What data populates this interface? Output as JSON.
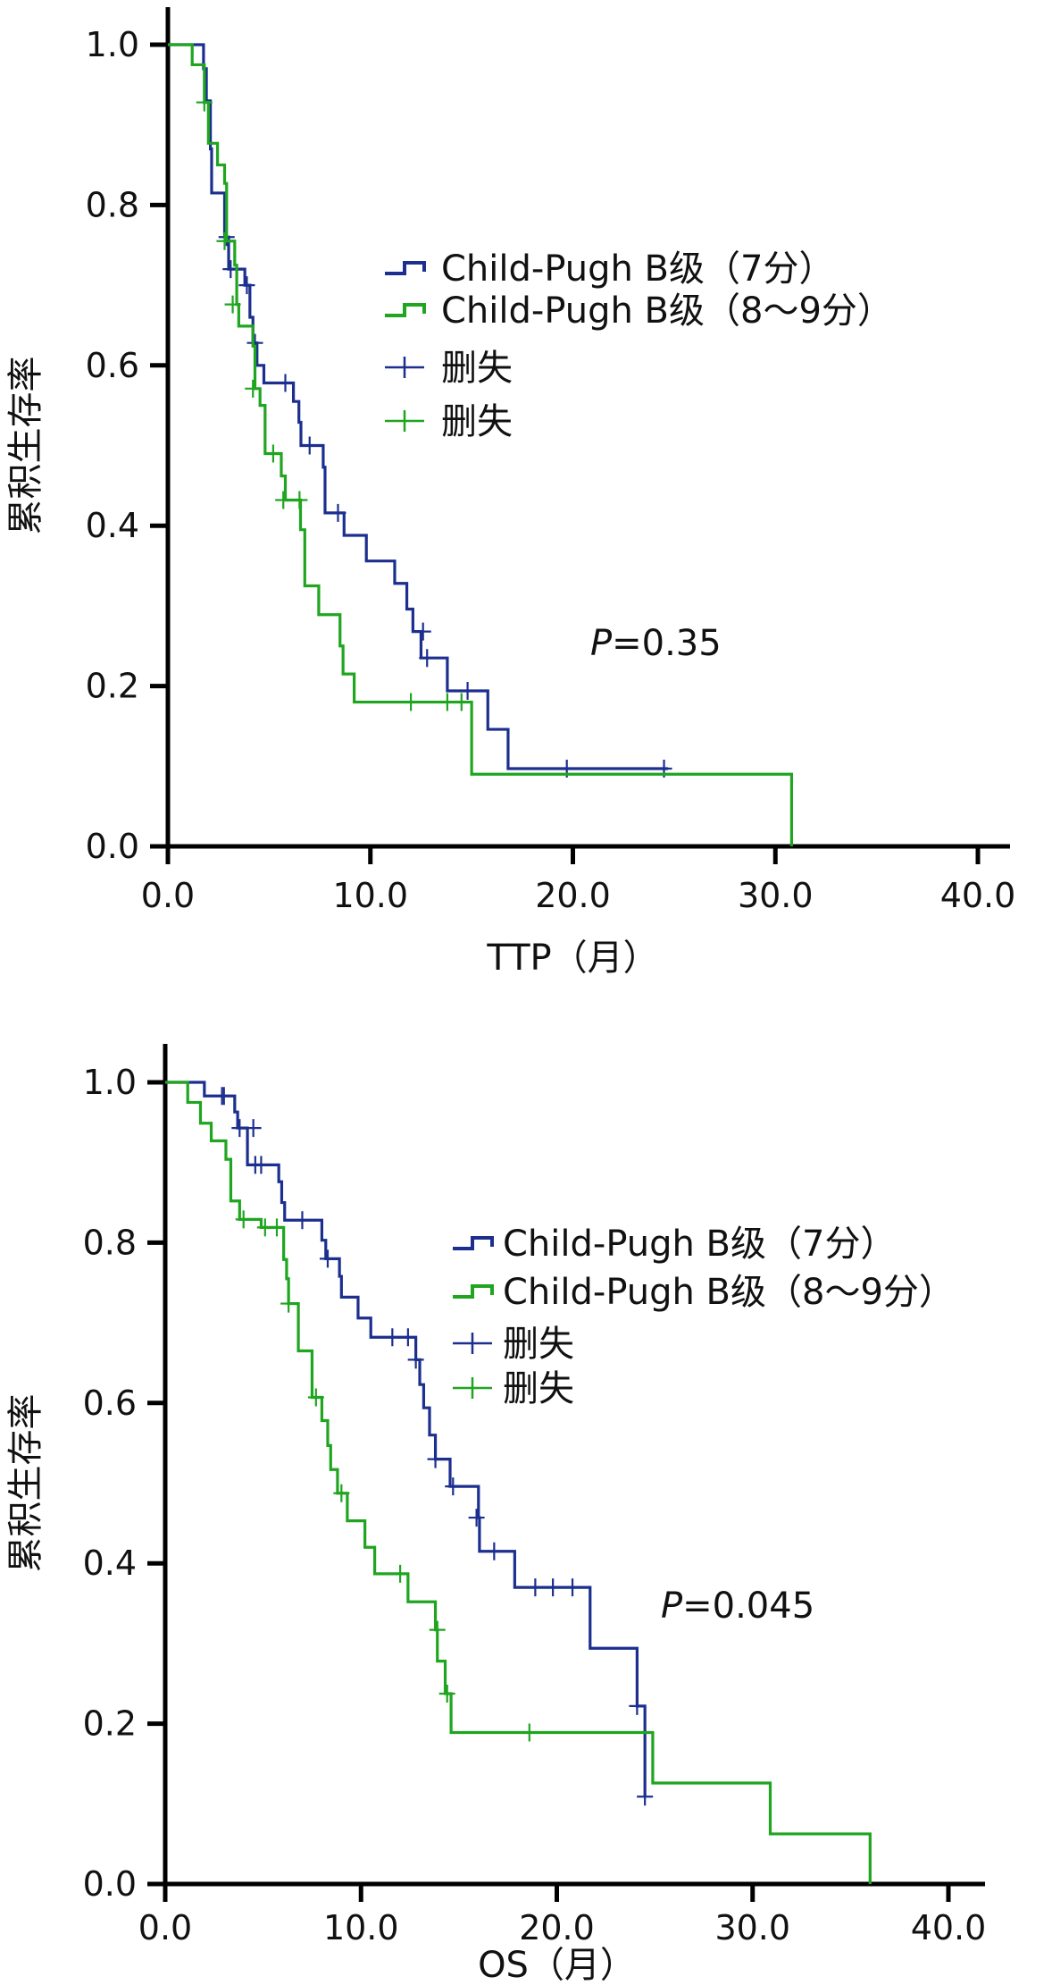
{
  "colors": {
    "blue": "#1c2f8f",
    "green": "#1fa51f",
    "axis": "#000000"
  },
  "chart_data": [
    {
      "type": "line",
      "subtype": "kaplan-meier",
      "xlabel": "TTP（月）",
      "ylabel": "累积生存率",
      "xlim": [
        0,
        40
      ],
      "ylim": [
        0,
        1
      ],
      "xticks": [
        "0.0",
        "10.0",
        "20.0",
        "30.0",
        "40.0"
      ],
      "yticks": [
        "0.0",
        "0.2",
        "0.4",
        "0.6",
        "0.8",
        "1.0"
      ],
      "annotation": "P=0.35",
      "annotation_parts": [
        "P",
        "=0.35"
      ],
      "legend": [
        "Child-Pugh B级（7分）",
        "Child-Pugh B级（8～9分）",
        "删失",
        "删失"
      ],
      "legend_position": "center-right",
      "series": [
        {
          "name": "Child-Pugh B级（7分）",
          "color_key": "blue",
          "steps": [
            [
              0,
              1.0
            ],
            [
              1.76,
              0.97
            ],
            [
              1.9,
              0.93
            ],
            [
              2.1,
              0.87
            ],
            [
              2.16,
              0.815
            ],
            [
              2.8,
              0.76
            ],
            [
              3.0,
              0.72
            ],
            [
              3.8,
              0.7
            ],
            [
              4.05,
              0.66
            ],
            [
              4.2,
              0.628
            ],
            [
              4.4,
              0.6
            ],
            [
              4.74,
              0.578
            ],
            [
              6.2,
              0.555
            ],
            [
              6.47,
              0.529
            ],
            [
              6.57,
              0.5
            ],
            [
              7.67,
              0.473
            ],
            [
              7.76,
              0.416
            ],
            [
              8.7,
              0.388
            ],
            [
              9.8,
              0.356
            ],
            [
              11.2,
              0.328
            ],
            [
              11.8,
              0.296
            ],
            [
              12.1,
              0.268
            ],
            [
              12.5,
              0.235
            ],
            [
              13.8,
              0.194
            ],
            [
              15.8,
              0.146
            ],
            [
              16.8,
              0.097
            ]
          ],
          "end": 24.7,
          "censored": [
            [
              2.9,
              0.76
            ],
            [
              3.1,
              0.72
            ],
            [
              3.9,
              0.7
            ],
            [
              4.3,
              0.628
            ],
            [
              5.8,
              0.578
            ],
            [
              7.0,
              0.5
            ],
            [
              8.4,
              0.416
            ],
            [
              12.6,
              0.268
            ],
            [
              12.8,
              0.235
            ],
            [
              14.8,
              0.194
            ],
            [
              19.7,
              0.097
            ],
            [
              24.5,
              0.097
            ]
          ]
        },
        {
          "name": "Child-Pugh B级（8～9分）",
          "color_key": "green",
          "steps": [
            [
              0,
              1.0
            ],
            [
              1.2,
              0.975
            ],
            [
              1.8,
              0.928
            ],
            [
              2.0,
              0.877
            ],
            [
              2.45,
              0.85
            ],
            [
              2.8,
              0.827
            ],
            [
              2.9,
              0.755
            ],
            [
              3.3,
              0.725
            ],
            [
              3.4,
              0.676
            ],
            [
              3.5,
              0.649
            ],
            [
              4.2,
              0.624
            ],
            [
              4.3,
              0.571
            ],
            [
              4.55,
              0.55
            ],
            [
              4.8,
              0.49
            ],
            [
              5.6,
              0.462
            ],
            [
              5.8,
              0.432
            ],
            [
              6.55,
              0.395
            ],
            [
              6.76,
              0.325
            ],
            [
              7.45,
              0.289
            ],
            [
              8.5,
              0.25
            ],
            [
              8.65,
              0.215
            ],
            [
              9.2,
              0.18
            ],
            [
              15.0,
              0.09
            ],
            [
              30.8,
              0.0
            ]
          ],
          "end": 30.8,
          "censored": [
            [
              1.8,
              0.928
            ],
            [
              2.8,
              0.755
            ],
            [
              3.2,
              0.676
            ],
            [
              4.2,
              0.571
            ],
            [
              5.2,
              0.49
            ],
            [
              5.7,
              0.432
            ],
            [
              6.5,
              0.432
            ],
            [
              12.0,
              0.18
            ],
            [
              13.8,
              0.18
            ],
            [
              14.5,
              0.18
            ]
          ]
        }
      ]
    },
    {
      "type": "line",
      "subtype": "kaplan-meier",
      "xlabel": "OS（月）",
      "ylabel": "累积生存率",
      "xlim": [
        0,
        40
      ],
      "ylim": [
        0,
        1
      ],
      "xticks": [
        "0.0",
        "10.0",
        "20.0",
        "30.0",
        "40.0"
      ],
      "yticks": [
        "0.0",
        "0.2",
        "0.4",
        "0.6",
        "0.8",
        "1.0"
      ],
      "annotation": "P=0.045",
      "annotation_parts": [
        "P",
        "=0.045"
      ],
      "legend": [
        "Child-Pugh B级（7分）",
        "Child-Pugh B级（8～9分）",
        "删失",
        "删失"
      ],
      "legend_position": "center-right",
      "series": [
        {
          "name": "Child-Pugh B级（7分）",
          "color_key": "blue",
          "steps": [
            [
              0,
              1.0
            ],
            [
              2.0,
              0.983
            ],
            [
              3.55,
              0.963
            ],
            [
              3.7,
              0.943
            ],
            [
              4.2,
              0.897
            ],
            [
              5.8,
              0.876
            ],
            [
              5.95,
              0.85
            ],
            [
              6.1,
              0.828
            ],
            [
              8.0,
              0.803
            ],
            [
              8.2,
              0.78
            ],
            [
              8.9,
              0.758
            ],
            [
              9.0,
              0.732
            ],
            [
              9.85,
              0.706
            ],
            [
              10.5,
              0.682
            ],
            [
              12.8,
              0.654
            ],
            [
              13.0,
              0.623
            ],
            [
              13.2,
              0.594
            ],
            [
              13.5,
              0.56
            ],
            [
              13.8,
              0.53
            ],
            [
              14.55,
              0.496
            ],
            [
              16.0,
              0.457
            ],
            [
              16.05,
              0.415
            ],
            [
              17.85,
              0.37
            ],
            [
              21.7,
              0.294
            ],
            [
              24.1,
              0.222
            ],
            [
              24.5,
              0.109
            ]
          ],
          "end": 24.5,
          "censored": [
            [
              2.9,
              0.983
            ],
            [
              3.0,
              0.983
            ],
            [
              3.8,
              0.943
            ],
            [
              4.5,
              0.943
            ],
            [
              4.6,
              0.897
            ],
            [
              4.9,
              0.897
            ],
            [
              7.0,
              0.828
            ],
            [
              8.3,
              0.78
            ],
            [
              11.6,
              0.682
            ],
            [
              12.4,
              0.682
            ],
            [
              12.8,
              0.654
            ],
            [
              13.8,
              0.53
            ],
            [
              14.7,
              0.496
            ],
            [
              15.9,
              0.457
            ],
            [
              16.8,
              0.415
            ],
            [
              18.9,
              0.37
            ],
            [
              19.8,
              0.37
            ],
            [
              20.8,
              0.37
            ],
            [
              24.1,
              0.222
            ],
            [
              24.5,
              0.109
            ]
          ]
        },
        {
          "name": "Child-Pugh B级（8～9分）",
          "color_key": "green",
          "steps": [
            [
              0,
              1.0
            ],
            [
              1.15,
              0.975
            ],
            [
              1.8,
              0.949
            ],
            [
              2.35,
              0.927
            ],
            [
              3.1,
              0.904
            ],
            [
              3.35,
              0.852
            ],
            [
              3.8,
              0.829
            ],
            [
              4.9,
              0.819
            ],
            [
              6.05,
              0.779
            ],
            [
              6.2,
              0.755
            ],
            [
              6.3,
              0.724
            ],
            [
              6.8,
              0.665
            ],
            [
              7.5,
              0.607
            ],
            [
              8.0,
              0.578
            ],
            [
              8.3,
              0.547
            ],
            [
              8.45,
              0.517
            ],
            [
              8.8,
              0.4875
            ],
            [
              9.3,
              0.453
            ],
            [
              10.2,
              0.42
            ],
            [
              10.7,
              0.387
            ],
            [
              12.4,
              0.352
            ],
            [
              13.8,
              0.317
            ],
            [
              13.9,
              0.278
            ],
            [
              14.3,
              0.2375
            ],
            [
              14.6,
              0.189
            ],
            [
              24.9,
              0.126
            ],
            [
              30.9,
              0.0625
            ],
            [
              36.0,
              0.0
            ]
          ],
          "end": 36.0,
          "censored": [
            [
              4.0,
              0.829
            ],
            [
              5.1,
              0.819
            ],
            [
              5.7,
              0.819
            ],
            [
              6.3,
              0.724
            ],
            [
              7.7,
              0.607
            ],
            [
              9.0,
              0.4875
            ],
            [
              12.0,
              0.387
            ],
            [
              13.9,
              0.317
            ],
            [
              14.4,
              0.2375
            ],
            [
              18.6,
              0.189
            ]
          ]
        }
      ]
    }
  ]
}
